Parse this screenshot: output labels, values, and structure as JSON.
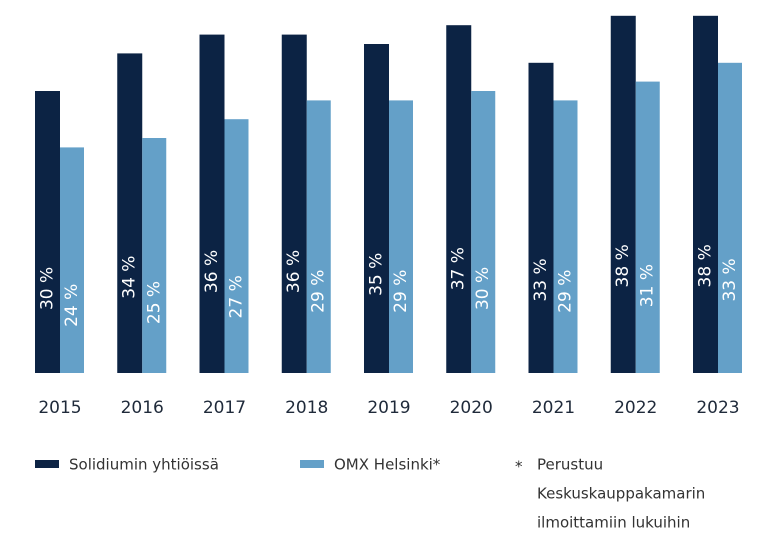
{
  "chart_data": {
    "type": "bar",
    "categories": [
      "2015",
      "2016",
      "2017",
      "2018",
      "2019",
      "2020",
      "2021",
      "2022",
      "2023"
    ],
    "series": [
      {
        "name": "Solidiumin yhtiöissä",
        "color": "#0c2344",
        "values": [
          30,
          34,
          36,
          36,
          35,
          37,
          33,
          38,
          38
        ],
        "value_labels": [
          "30 %",
          "34 %",
          "36 %",
          "36 %",
          "35 %",
          "37 %",
          "33 %",
          "38 %",
          "38 %"
        ]
      },
      {
        "name": "OMX Helsinki*",
        "color": "#64a0c8",
        "values": [
          24,
          25,
          27,
          29,
          29,
          30,
          29,
          31,
          33
        ],
        "value_labels": [
          "24 %",
          "25 %",
          "27 %",
          "29 %",
          "29 %",
          "30 %",
          "29 %",
          "31 %",
          "33 %"
        ]
      }
    ],
    "ylim": [
      0,
      40
    ],
    "note": {
      "marker": "*",
      "lines": [
        "Perustuu",
        "Keskuskauppakamarin",
        "ilmoittamiin lukuihin"
      ]
    }
  }
}
